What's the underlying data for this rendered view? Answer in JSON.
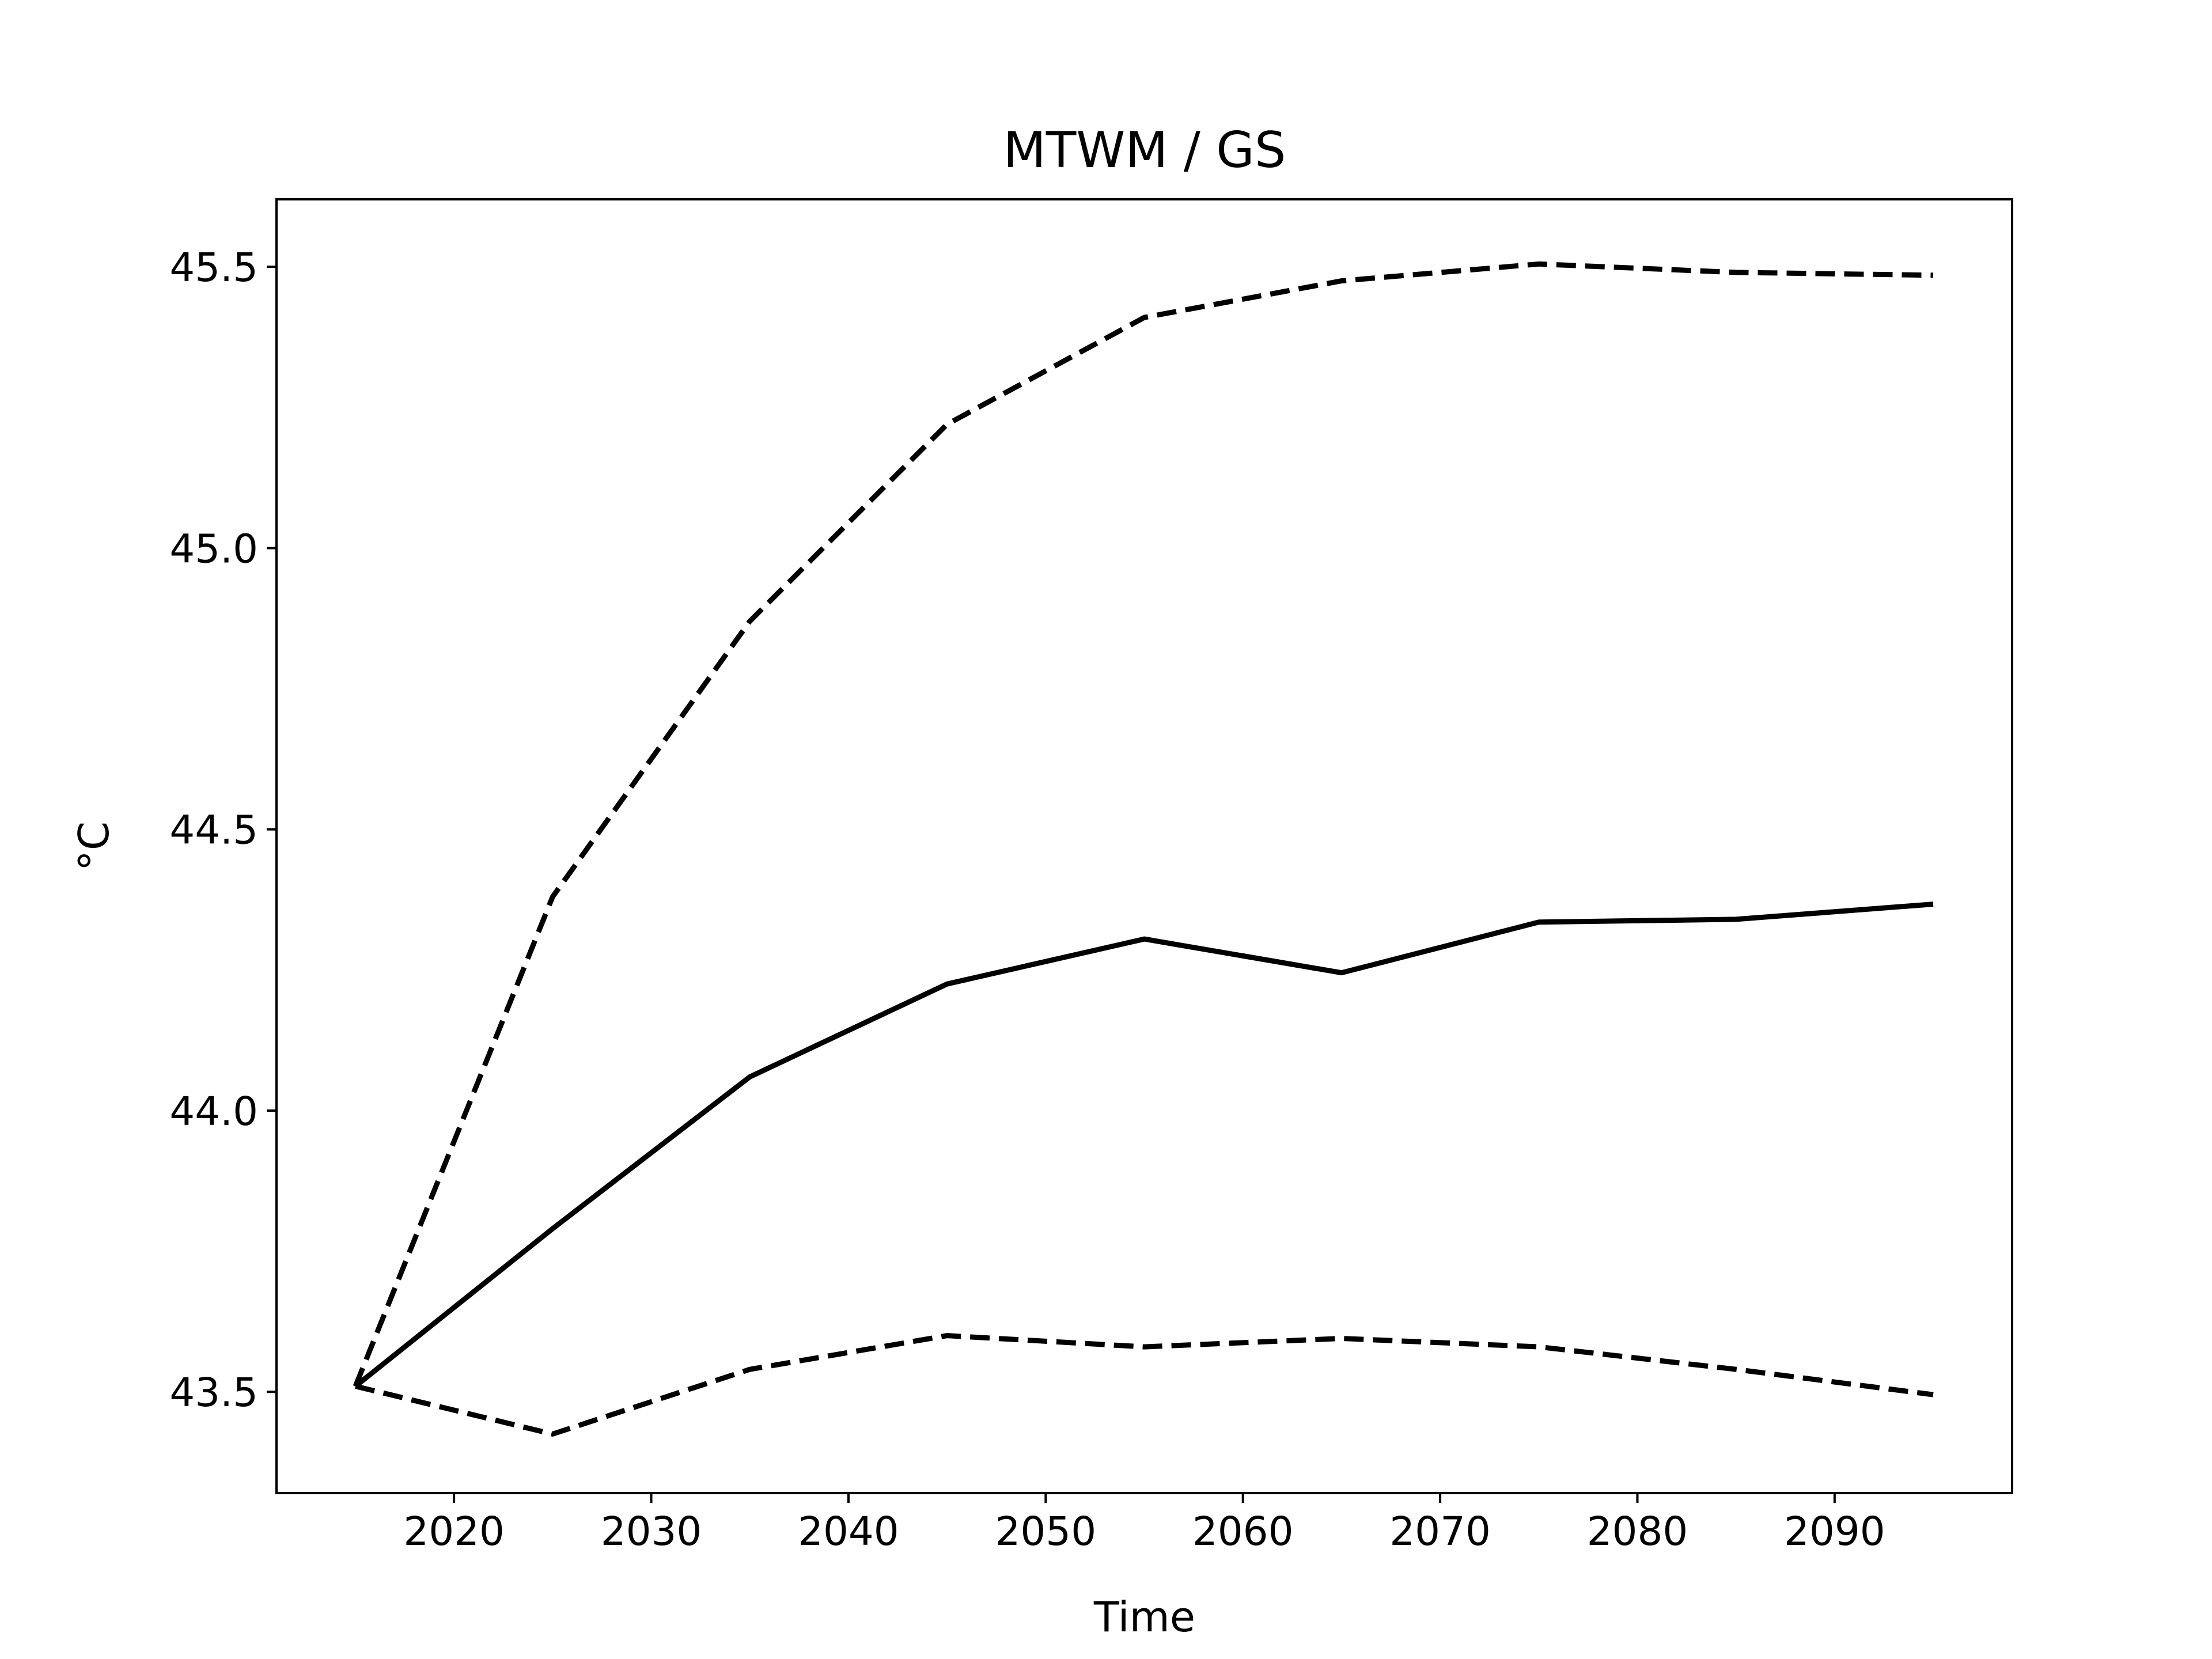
{
  "chart_data": {
    "type": "line",
    "title": "MTWM / GS",
    "xlabel": "Time",
    "ylabel": "°C",
    "xlim": [
      2011,
      2099
    ],
    "ylim": [
      43.32,
      45.62
    ],
    "xticks": [
      2020,
      2030,
      2040,
      2050,
      2060,
      2070,
      2080,
      2090
    ],
    "xtick_labels": [
      "2020",
      "2030",
      "2040",
      "2050",
      "2060",
      "2070",
      "2080",
      "2090"
    ],
    "yticks": [
      43.5,
      44.0,
      44.5,
      45.0,
      45.5
    ],
    "ytick_labels": [
      "43.5",
      "44.0",
      "44.5",
      "45.0",
      "45.5"
    ],
    "grid": false,
    "legend": "none",
    "x": [
      2015,
      2025,
      2035,
      2045,
      2055,
      2065,
      2075,
      2085,
      2095
    ],
    "series": [
      {
        "style": "solid",
        "color": "#000000",
        "values": [
          43.51,
          43.79,
          44.06,
          44.225,
          44.305,
          44.245,
          44.335,
          44.34,
          44.367
        ]
      },
      {
        "style": "dashed",
        "color": "#000000",
        "values": [
          43.51,
          44.38,
          44.87,
          45.22,
          45.41,
          45.475,
          45.505,
          45.49,
          45.485
        ]
      },
      {
        "style": "dashed",
        "color": "#000000",
        "values": [
          43.51,
          43.425,
          43.54,
          43.6,
          43.58,
          43.595,
          43.58,
          43.54,
          43.495
        ]
      }
    ]
  }
}
